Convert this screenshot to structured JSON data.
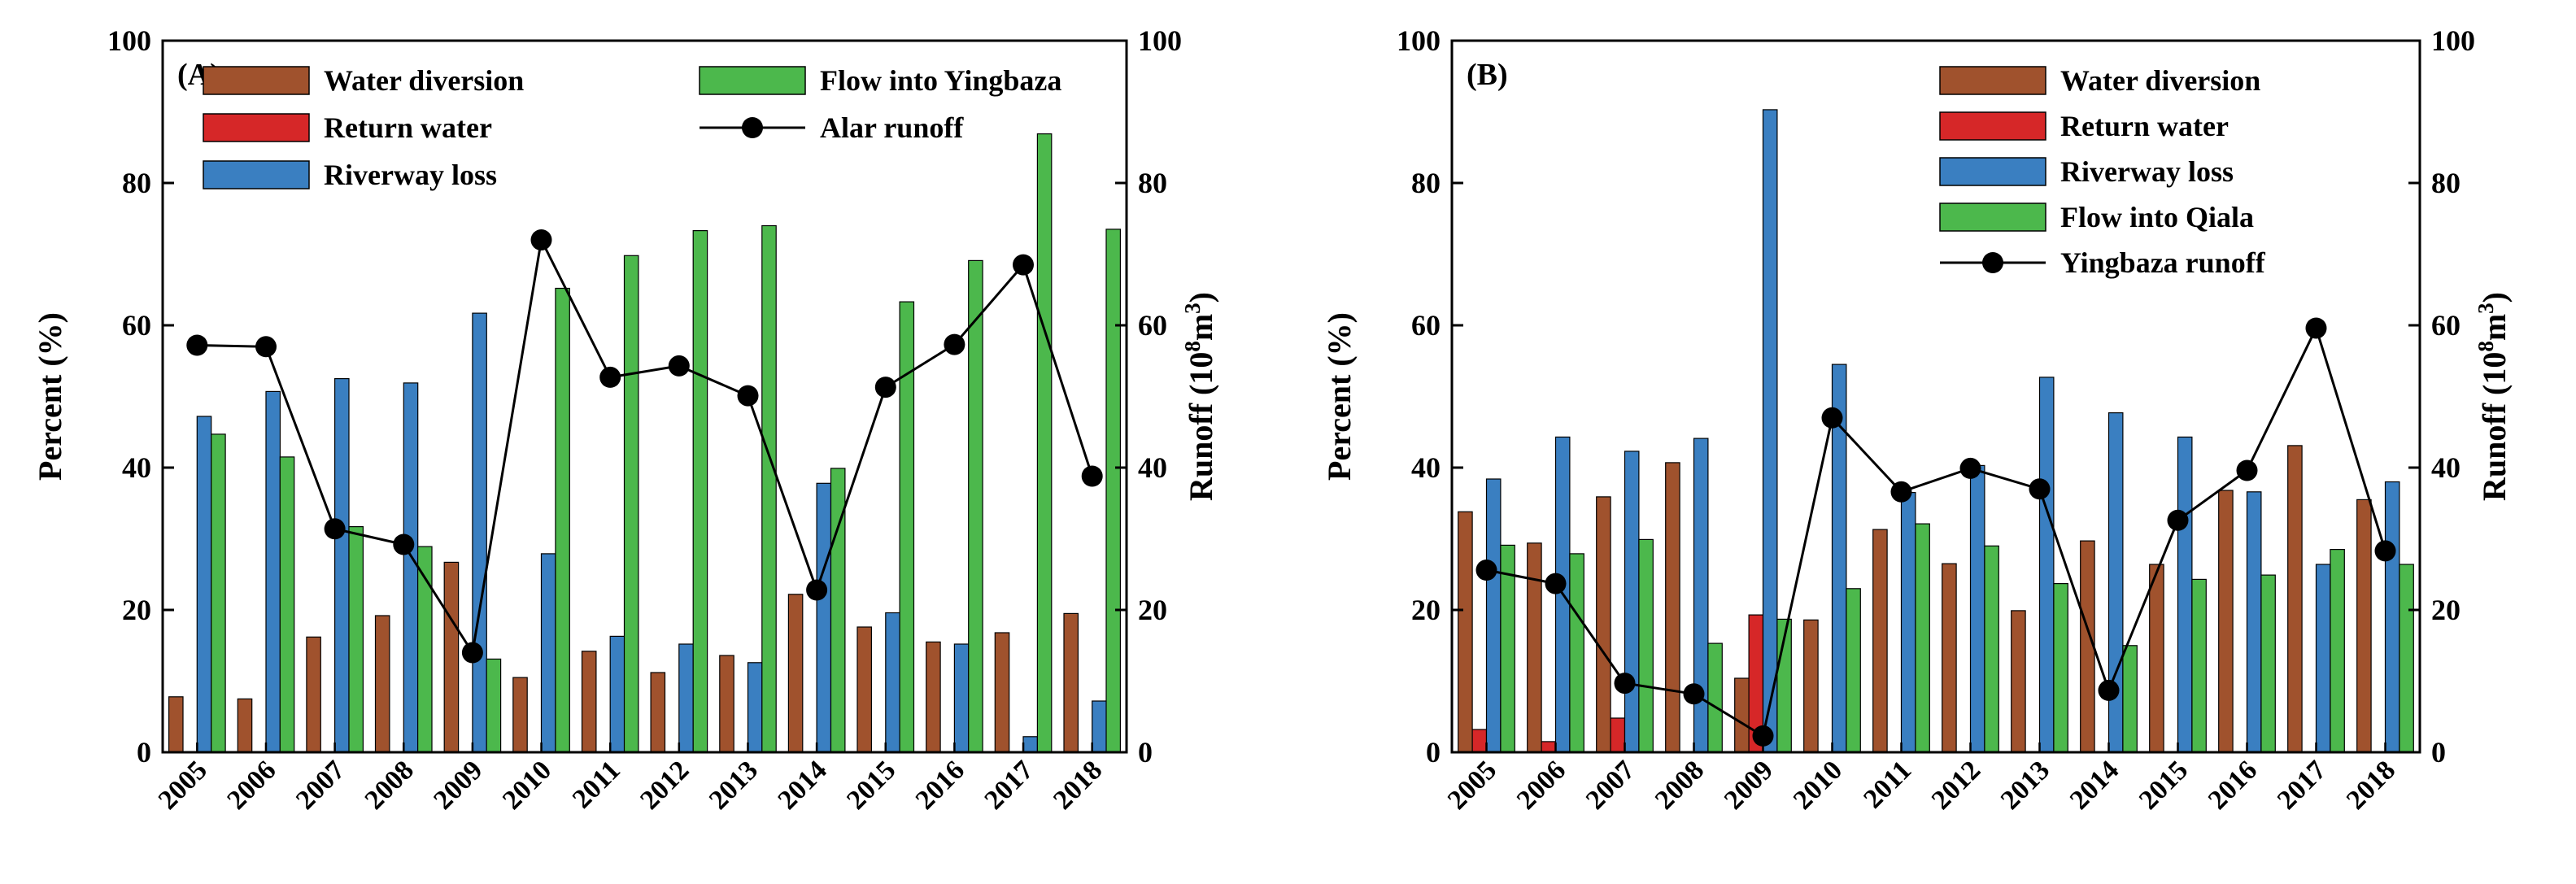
{
  "colors": {
    "Water diversion": "#a0522d",
    "Return water": "#d62728",
    "Riverway loss": "#3a7fc1",
    "Flow into Yingbaza": "#4cb84c",
    "Flow into Qiala": "#4cb84c",
    "runoff": "#000000"
  },
  "chart_data": [
    {
      "type": "bar",
      "panel_label": "(A)",
      "categories": [
        "2005",
        "2006",
        "2007",
        "2008",
        "2009",
        "2010",
        "2011",
        "2012",
        "2013",
        "2014",
        "2015",
        "2016",
        "2017",
        "2018"
      ],
      "series": [
        {
          "name": "Water diversion",
          "axis": "left",
          "values": [
            7.8,
            7.5,
            16.2,
            19.2,
            26.7,
            10.5,
            14.2,
            11.2,
            13.6,
            22.2,
            17.6,
            15.5,
            16.8,
            19.5
          ]
        },
        {
          "name": "Return water",
          "axis": "left",
          "values": [
            0,
            0,
            0,
            0,
            0,
            0,
            0,
            0,
            0,
            0,
            0,
            0,
            0,
            0
          ]
        },
        {
          "name": "Riverway loss",
          "axis": "left",
          "values": [
            47.2,
            50.7,
            52.5,
            51.9,
            61.7,
            27.9,
            16.3,
            15.2,
            12.6,
            37.8,
            19.6,
            15.2,
            2.2,
            7.2
          ]
        },
        {
          "name": "Flow into Yingbaza",
          "axis": "left",
          "values": [
            44.7,
            41.5,
            31.7,
            28.9,
            13.1,
            65.2,
            69.8,
            73.3,
            74.0,
            39.9,
            63.3,
            69.1,
            86.9,
            73.5
          ]
        },
        {
          "name": "Alar runoff",
          "axis": "right",
          "type": "line",
          "values": [
            57.2,
            57.0,
            31.4,
            29.2,
            14.0,
            72.0,
            52.7,
            54.3,
            50.1,
            22.8,
            51.3,
            57.3,
            68.5,
            38.8
          ]
        }
      ],
      "ylabel": "Percent (%)",
      "y2label": "Runoff (10",
      "y2label_sup1": "8",
      "y2label_mid": "m",
      "y2label_sup2": "3",
      "y2label_end": ")",
      "ylim": [
        0,
        100
      ],
      "y2lim": [
        0,
        100
      ],
      "yticks": [
        0,
        20,
        40,
        60,
        80,
        100
      ],
      "legend_position": "top"
    },
    {
      "type": "bar",
      "panel_label": "(B)",
      "categories": [
        "2005",
        "2006",
        "2007",
        "2008",
        "2009",
        "2010",
        "2011",
        "2012",
        "2013",
        "2014",
        "2015",
        "2016",
        "2017",
        "2018"
      ],
      "series": [
        {
          "name": "Water diversion",
          "axis": "left",
          "values": [
            33.8,
            29.4,
            35.9,
            40.7,
            10.4,
            18.6,
            31.3,
            26.5,
            19.9,
            29.7,
            26.4,
            36.8,
            43.1,
            35.5
          ]
        },
        {
          "name": "Return water",
          "axis": "left",
          "values": [
            3.2,
            1.5,
            4.8,
            0,
            19.3,
            0,
            0,
            0,
            0,
            0,
            0,
            0,
            0,
            0
          ]
        },
        {
          "name": "Riverway loss",
          "axis": "left",
          "values": [
            38.4,
            44.3,
            42.3,
            44.1,
            90.3,
            54.5,
            36.5,
            40.3,
            52.7,
            47.7,
            44.3,
            36.6,
            26.4,
            38.0
          ]
        },
        {
          "name": "Flow into Qiala",
          "axis": "left",
          "values": [
            29.1,
            27.9,
            29.9,
            15.3,
            18.7,
            23.0,
            32.1,
            29.0,
            23.7,
            15.0,
            24.3,
            24.9,
            28.5,
            26.4
          ]
        },
        {
          "name": "Yingbaza runoff",
          "axis": "right",
          "type": "line",
          "values": [
            25.6,
            23.7,
            9.7,
            8.2,
            2.3,
            47.0,
            36.6,
            39.9,
            37.0,
            8.7,
            32.6,
            39.6,
            59.6,
            28.3
          ]
        }
      ],
      "ylabel": "Percent (%)",
      "y2label": "Runoff (10",
      "y2label_sup1": "8",
      "y2label_mid": "m",
      "y2label_sup2": "3",
      "y2label_end": ")",
      "ylim": [
        0,
        100
      ],
      "y2lim": [
        0,
        100
      ],
      "yticks": [
        0,
        20,
        40,
        60,
        80,
        100
      ],
      "legend_position": "top-right"
    }
  ]
}
